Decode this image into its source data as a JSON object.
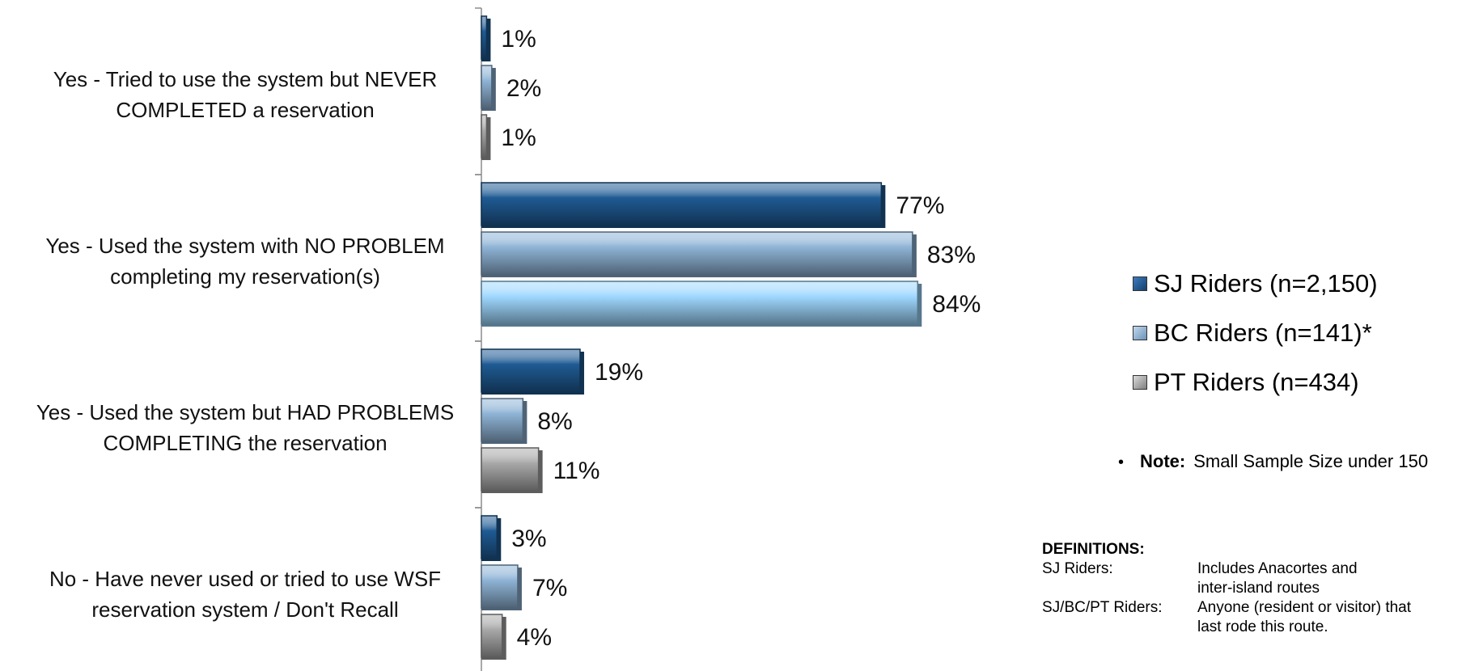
{
  "chart_data": {
    "type": "bar",
    "orientation": "horizontal",
    "categories": [
      [
        "Yes - Tried to use the system but NEVER",
        "COMPLETED a reservation"
      ],
      [
        "Yes - Used the system with NO PROBLEM",
        "completing my reservation(s)"
      ],
      [
        "Yes - Used the system but HAD PROBLEMS",
        "COMPLETING the reservation"
      ],
      [
        "No - Have never used or tried to use WSF",
        "reservation system / Don't Recall"
      ]
    ],
    "series": [
      {
        "name": "SJ Riders (n=2,150)",
        "values": [
          1,
          77,
          19,
          3
        ],
        "labels": [
          "1%",
          "77%",
          "19%",
          "3%"
        ],
        "color": "#1f5b94"
      },
      {
        "name": "BC Riders (n=141)*",
        "values": [
          2,
          83,
          8,
          7
        ],
        "labels": [
          "2%",
          "83%",
          "8%",
          "7%"
        ],
        "color": "#8fb4d6"
      },
      {
        "name": "PT Riders (n=434)",
        "values": [
          1,
          84,
          11,
          4
        ],
        "labels": [
          "1%",
          "84%",
          "11%",
          "4%"
        ],
        "color": "#a9a9a9"
      }
    ],
    "special_colors": {
      "PT Riders (n=434)": {
        "1": "#9fd8ff"
      }
    },
    "xlim": [
      0,
      100
    ],
    "grid": false,
    "legend_position": "right"
  },
  "note": {
    "bullet": "•",
    "label": "Note:",
    "text": "Small Sample Size under 150"
  },
  "definitions": {
    "title": "DEFINITIONS:",
    "items": [
      {
        "term": "SJ Riders:",
        "lines": [
          "Includes Anacortes and",
          "inter-island routes"
        ]
      },
      {
        "term": "SJ/BC/PT Riders:",
        "lines": [
          "Anyone (resident or visitor) that",
          "last rode this route."
        ]
      }
    ]
  }
}
